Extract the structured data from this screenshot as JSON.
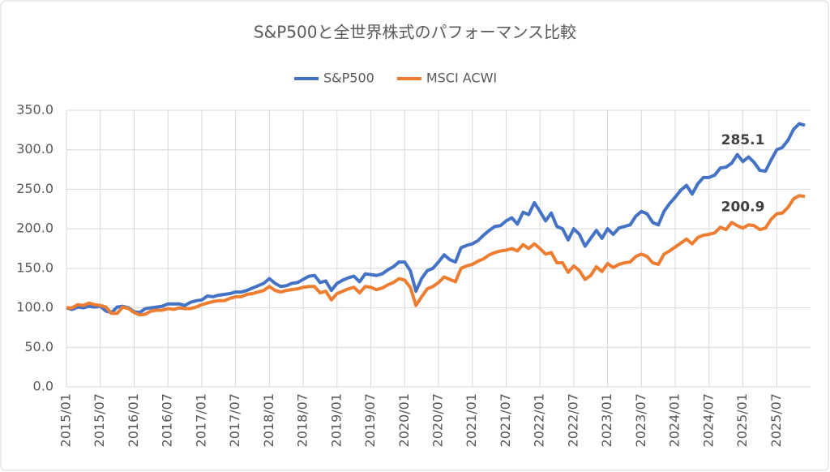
{
  "chart_data": {
    "type": "line",
    "title": "S&P500と全世界株式のパフォーマンス比較",
    "categories": [
      "2015/01",
      null,
      null,
      null,
      null,
      null,
      "2015/07",
      null,
      null,
      null,
      null,
      null,
      "2016/01",
      null,
      null,
      null,
      null,
      null,
      "2016/07",
      null,
      null,
      null,
      null,
      null,
      "2017/01",
      null,
      null,
      null,
      null,
      null,
      "2017/07",
      null,
      null,
      null,
      null,
      null,
      "2018/01",
      null,
      null,
      null,
      null,
      null,
      "2018/07",
      null,
      null,
      null,
      null,
      null,
      "2019/01",
      null,
      null,
      null,
      null,
      null,
      "2019/07",
      null,
      null,
      null,
      null,
      null,
      "2020/01",
      null,
      null,
      null,
      null,
      null,
      "2020/07",
      null,
      null,
      null,
      null,
      null,
      "2021/01",
      null,
      null,
      null,
      null,
      null,
      "2021/07",
      null,
      null,
      null,
      null,
      null,
      "2022/01",
      null,
      null,
      null,
      null,
      null,
      "2022/07",
      null,
      null,
      null,
      null,
      null,
      "2023/01",
      null,
      null,
      null,
      null,
      null,
      "2023/07",
      null,
      null,
      null,
      null,
      null,
      "2024/01",
      null,
      null,
      null,
      null,
      null,
      "2024/07",
      null,
      null,
      null,
      null,
      null,
      "2025/01",
      null,
      null,
      null,
      null,
      null,
      "2025/07",
      null,
      null,
      null,
      null,
      null
    ],
    "series": [
      {
        "name": "S&P500",
        "color": "#4472c4",
        "values": [
          100,
          98,
          101,
          100,
          102,
          101,
          102,
          96,
          94,
          101,
          102,
          100,
          95,
          94,
          99,
          100,
          101,
          102,
          105,
          105,
          105,
          103,
          107,
          109,
          110,
          115,
          114,
          116,
          117,
          118,
          120,
          120,
          122,
          125,
          128,
          131,
          137,
          131,
          127,
          128,
          131,
          132,
          136,
          140,
          141,
          132,
          134,
          122,
          131,
          135,
          138,
          140,
          133,
          143,
          142,
          141,
          143,
          148,
          152,
          158,
          158,
          147,
          121,
          137,
          147,
          150,
          158,
          167,
          161,
          158,
          176,
          179,
          181,
          185,
          192,
          198,
          203,
          204,
          210,
          214,
          206,
          221,
          218,
          233,
          222,
          210,
          220,
          203,
          200,
          186,
          200,
          193,
          178,
          188,
          198,
          188,
          200,
          193,
          201,
          203,
          205,
          216,
          222,
          219,
          208,
          205,
          222,
          232,
          240,
          249,
          255,
          244,
          257,
          265,
          265,
          268,
          277,
          278,
          283,
          294,
          285.1,
          291,
          284,
          274,
          273,
          287,
          300,
          303,
          312,
          326,
          333,
          331
        ],
        "value_labels": [
          null,
          null,
          null,
          null,
          null,
          null,
          null,
          null,
          null,
          null,
          null,
          null,
          null,
          null,
          null,
          null,
          null,
          null,
          null,
          null,
          null,
          null,
          null,
          null,
          null,
          null,
          null,
          null,
          null,
          null,
          null,
          null,
          null,
          null,
          null,
          null,
          null,
          null,
          null,
          null,
          null,
          null,
          null,
          null,
          null,
          null,
          null,
          null,
          null,
          null,
          null,
          null,
          null,
          null,
          null,
          null,
          null,
          null,
          null,
          null,
          null,
          null,
          null,
          null,
          null,
          null,
          null,
          null,
          null,
          null,
          null,
          null,
          null,
          null,
          null,
          null,
          null,
          null,
          null,
          null,
          null,
          null,
          null,
          null,
          null,
          null,
          null,
          null,
          null,
          null,
          null,
          null,
          null,
          null,
          null,
          null,
          null,
          null,
          null,
          null,
          null,
          null,
          null,
          null,
          null,
          null,
          null,
          null,
          null,
          null,
          null,
          null,
          null,
          null,
          null,
          null,
          null,
          null,
          null,
          null,
          "285.1",
          null,
          null,
          null,
          null,
          null,
          null,
          null,
          null,
          null,
          null,
          null
        ]
      },
      {
        "name": "MSCI ACWI",
        "color": "#ed7d31",
        "values": [
          100,
          100,
          104,
          103,
          106,
          104,
          103,
          101,
          93,
          93,
          101,
          99,
          94,
          91,
          92,
          96,
          97,
          97,
          99,
          98,
          100,
          99,
          99,
          101,
          104,
          106,
          108,
          109,
          109,
          112,
          114,
          114,
          117,
          118,
          120,
          122,
          127,
          122,
          120,
          122,
          123,
          124,
          126,
          127,
          127,
          119,
          121,
          110,
          118,
          121,
          124,
          126,
          119,
          127,
          126,
          123,
          125,
          129,
          132,
          137,
          135,
          126,
          103,
          114,
          124,
          127,
          132,
          139,
          136,
          133,
          150,
          153,
          155,
          159,
          162,
          167,
          170,
          172,
          173,
          175,
          172,
          180,
          175,
          181,
          175,
          168,
          170,
          157,
          157,
          145,
          153,
          147,
          136,
          141,
          152,
          146,
          156,
          151,
          155,
          157,
          158,
          165,
          168,
          165,
          157,
          155,
          168,
          172,
          177,
          182,
          187,
          181,
          189,
          192,
          193,
          195,
          202,
          199,
          208,
          204,
          200.9,
          205,
          204,
          199,
          201,
          212,
          219,
          220,
          227,
          238,
          242,
          241
        ],
        "value_labels": [
          null,
          null,
          null,
          null,
          null,
          null,
          null,
          null,
          null,
          null,
          null,
          null,
          null,
          null,
          null,
          null,
          null,
          null,
          null,
          null,
          null,
          null,
          null,
          null,
          null,
          null,
          null,
          null,
          null,
          null,
          null,
          null,
          null,
          null,
          null,
          null,
          null,
          null,
          null,
          null,
          null,
          null,
          null,
          null,
          null,
          null,
          null,
          null,
          null,
          null,
          null,
          null,
          null,
          null,
          null,
          null,
          null,
          null,
          null,
          null,
          null,
          null,
          null,
          null,
          null,
          null,
          null,
          null,
          null,
          null,
          null,
          null,
          null,
          null,
          null,
          null,
          null,
          null,
          null,
          null,
          null,
          null,
          null,
          null,
          null,
          null,
          null,
          null,
          null,
          null,
          null,
          null,
          null,
          null,
          null,
          null,
          null,
          null,
          null,
          null,
          null,
          null,
          null,
          null,
          null,
          null,
          null,
          null,
          null,
          null,
          null,
          null,
          null,
          null,
          null,
          null,
          null,
          null,
          null,
          null,
          "200.9",
          null,
          null,
          null,
          null,
          null,
          null,
          null,
          null,
          null,
          null,
          null
        ]
      }
    ],
    "ylim": [
      0,
      350
    ],
    "yticks": [
      {
        "value": 0,
        "label": "0.0"
      },
      {
        "value": 50,
        "label": "50.0"
      },
      {
        "value": 100,
        "label": "100.0"
      },
      {
        "value": 150,
        "label": "150.0"
      },
      {
        "value": 200,
        "label": "200.0"
      },
      {
        "value": 250,
        "label": "250.0"
      },
      {
        "value": 300,
        "label": "300.0"
      },
      {
        "value": 350,
        "label": "350.0"
      }
    ],
    "grid": true,
    "legend": "top"
  }
}
